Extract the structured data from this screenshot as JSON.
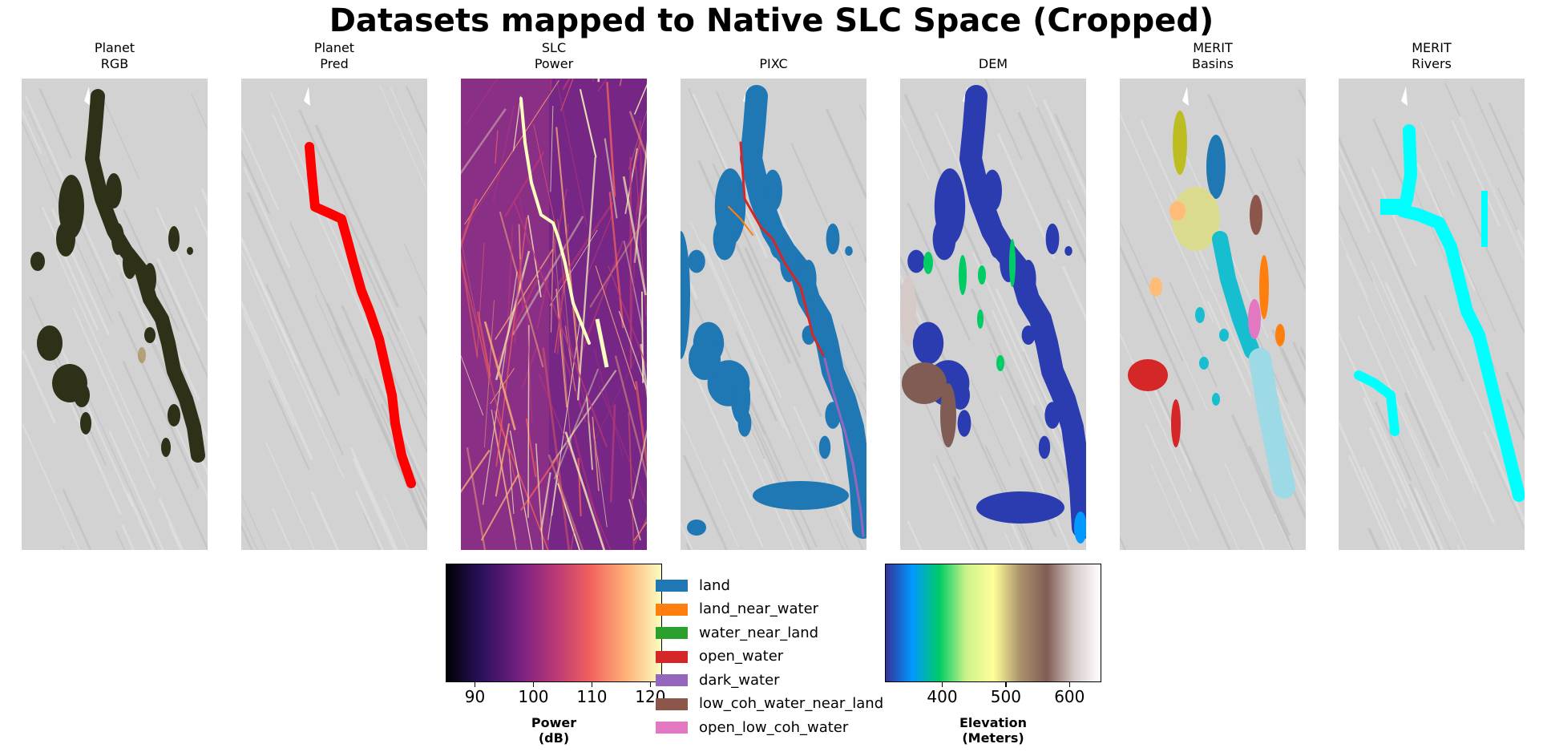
{
  "figure": {
    "title": "Datasets mapped to Native SLC Space (Cropped)"
  },
  "panels": [
    {
      "line1": "Planet",
      "line2": "RGB"
    },
    {
      "line1": "Planet",
      "line2": "Pred"
    },
    {
      "line1": "SLC",
      "line2": "Power"
    },
    {
      "line1": "",
      "line2": "PIXC"
    },
    {
      "line1": "",
      "line2": "DEM"
    },
    {
      "line1": "MERIT",
      "line2": "Basins"
    },
    {
      "line1": "MERIT",
      "line2": "Rivers"
    }
  ],
  "chart_data": [
    {
      "type": "heatmap",
      "title": "Planet RGB",
      "overlay_color": "#2e3018"
    },
    {
      "type": "heatmap",
      "title": "Planet Pred",
      "overlay_color": "#ff0000"
    },
    {
      "type": "heatmap",
      "title": "SLC Power",
      "colormap": "magma",
      "colorbar": {
        "label_line1": "Power",
        "label_line2": "(dB)",
        "range": [
          85,
          122
        ],
        "ticks": [
          "90",
          "100",
          "110",
          "120"
        ],
        "tick_values": [
          90,
          100,
          110,
          120
        ],
        "colors": [
          "#000004",
          "#2c115f",
          "#721f81",
          "#b73779",
          "#f1605d",
          "#feb078",
          "#fcfdbf"
        ]
      }
    },
    {
      "type": "heatmap",
      "title": "PIXC",
      "legend": [
        {
          "label": "land",
          "color": "#1f77b4"
        },
        {
          "label": "land_near_water",
          "color": "#ff7f0e"
        },
        {
          "label": "water_near_land",
          "color": "#2ca02c"
        },
        {
          "label": "open_water",
          "color": "#d62728"
        },
        {
          "label": "dark_water",
          "color": "#9467bd"
        },
        {
          "label": "low_coh_water_near_land",
          "color": "#8c564b"
        },
        {
          "label": "open_low_coh_water",
          "color": "#e377c2"
        }
      ]
    },
    {
      "type": "heatmap",
      "title": "DEM",
      "colormap": "terrain",
      "colorbar": {
        "label_line1": "Elevation",
        "label_line2": "(Meters)",
        "range": [
          310,
          650
        ],
        "ticks": [
          "400",
          "500",
          "600"
        ],
        "tick_values": [
          400,
          500,
          600
        ],
        "colors": [
          "#333399",
          "#0099ff",
          "#00cc66",
          "#ccf28a",
          "#ffff99",
          "#aa926b",
          "#805c54",
          "#d5cac8",
          "#ffffff"
        ]
      }
    },
    {
      "type": "heatmap",
      "title": "MERIT Basins",
      "basin_colors": [
        "#bcbd22",
        "#1f77b4",
        "#dbdb8d",
        "#ffbb78",
        "#17becf",
        "#8c564b",
        "#ff7f0e",
        "#e377c2",
        "#d62728",
        "#9edae5"
      ]
    },
    {
      "type": "heatmap",
      "title": "MERIT Rivers",
      "overlay_color": "#00ffff"
    }
  ]
}
